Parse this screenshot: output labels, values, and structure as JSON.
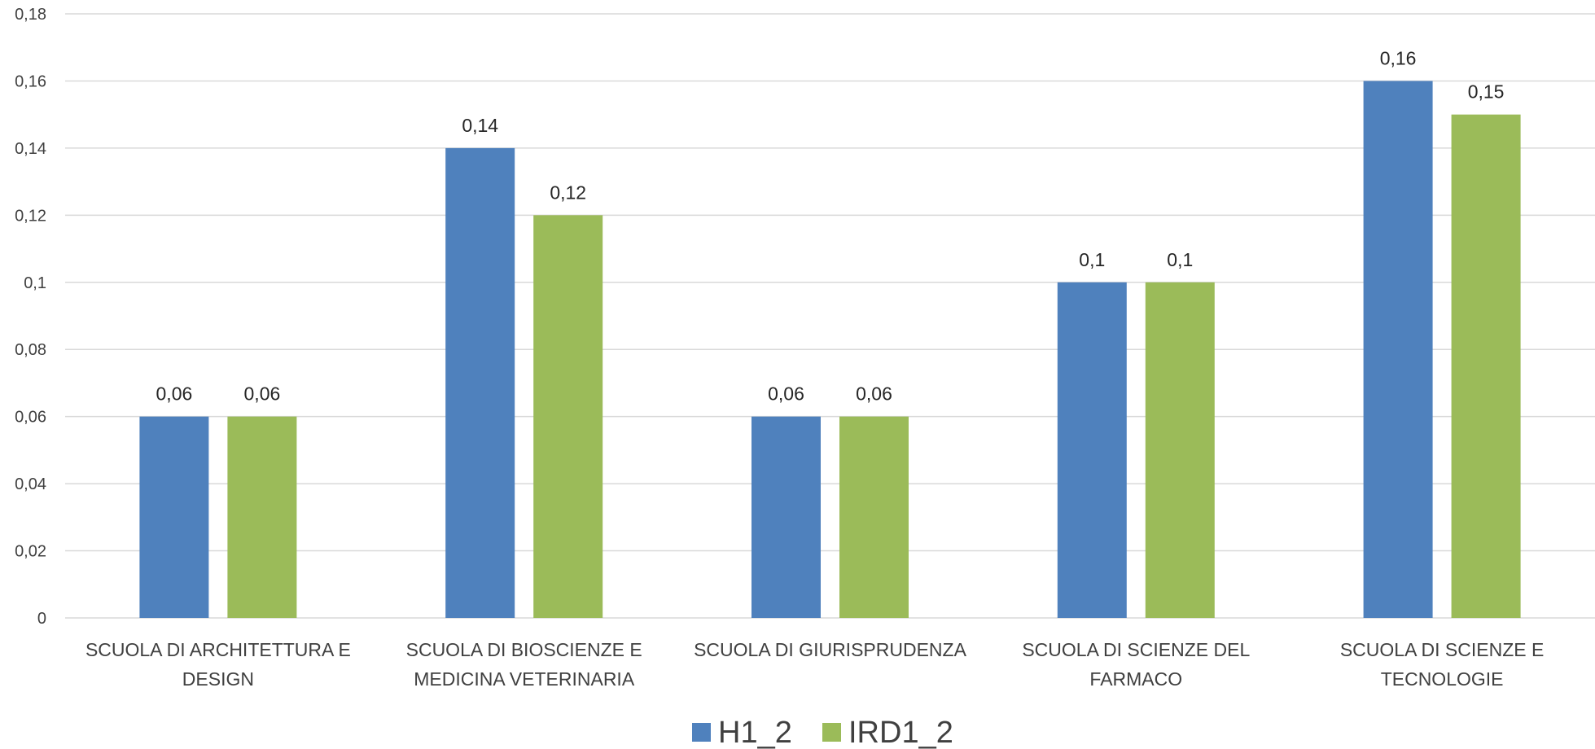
{
  "chart_data": {
    "type": "bar",
    "categories": [
      [
        "SCUOLA DI ARCHITETTURA E",
        "DESIGN"
      ],
      [
        "SCUOLA DI BIOSCIENZE E",
        "MEDICINA VETERINARIA"
      ],
      [
        "SCUOLA DI GIURISPRUDENZA"
      ],
      [
        "SCUOLA DI SCIENZE DEL",
        "FARMACO"
      ],
      [
        "SCUOLA DI SCIENZE E",
        "TECNOLOGIE"
      ]
    ],
    "series": [
      {
        "name": "H1_2",
        "color": "#4F81BD",
        "values": [
          0.06,
          0.14,
          0.06,
          0.1,
          0.16
        ],
        "labels": [
          "0,06",
          "0,14",
          "0,06",
          "0,1",
          "0,16"
        ]
      },
      {
        "name": "IRD1_2",
        "color": "#9BBB59",
        "values": [
          0.06,
          0.12,
          0.06,
          0.1,
          0.15
        ],
        "labels": [
          "0,06",
          "0,12",
          "0,06",
          "0,1",
          "0,15"
        ]
      }
    ],
    "ylim": [
      0,
      0.18
    ],
    "yticks": [
      0,
      0.02,
      0.04,
      0.06,
      0.08,
      0.1,
      0.12,
      0.14,
      0.16,
      0.18
    ],
    "ytick_labels": [
      "0",
      "0,02",
      "0,04",
      "0,06",
      "0,08",
      "0,1",
      "0,12",
      "0,14",
      "0,16",
      "0,18"
    ],
    "grid": true,
    "legend_position": "bottom-center",
    "gridline_color": "#D9D9D9"
  }
}
